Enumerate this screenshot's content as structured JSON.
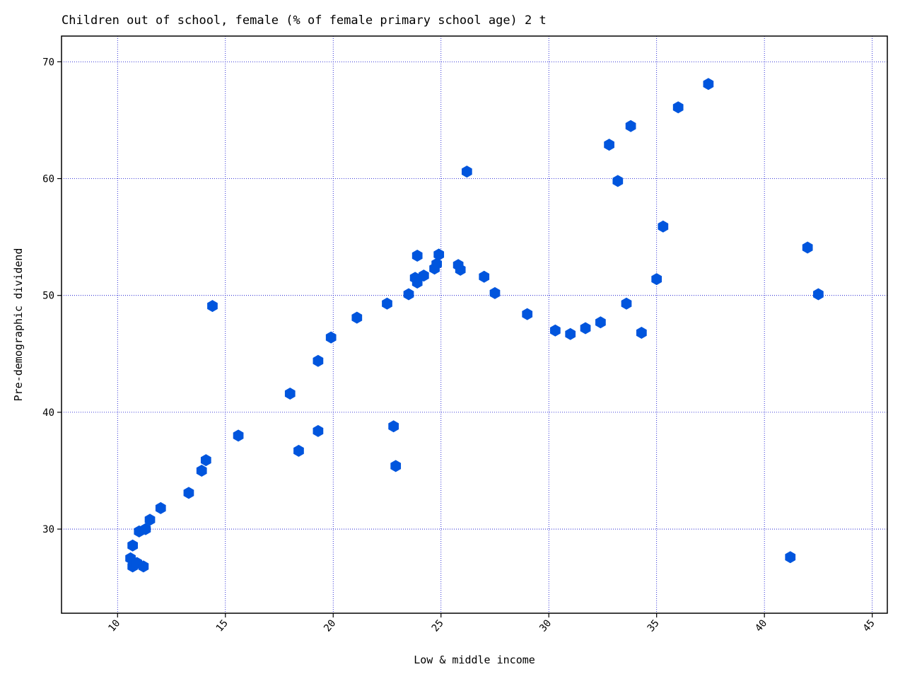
{
  "chart_data": {
    "type": "scatter",
    "title": "Children out of school, female (% of female primary school age) 2 t",
    "xlabel": "Low & middle income",
    "ylabel": "Pre-demographic dividend",
    "xlim": [
      7.4,
      45.7
    ],
    "ylim": [
      22.8,
      72.2
    ],
    "xticks": [
      10,
      15,
      20,
      25,
      30,
      35,
      40,
      45
    ],
    "yticks": [
      30,
      40,
      50,
      60,
      70
    ],
    "grid": true,
    "marker": "hexagon",
    "color": "#0055dd",
    "points": [
      [
        10.6,
        27.5
      ],
      [
        10.7,
        28.6
      ],
      [
        10.7,
        26.8
      ],
      [
        10.9,
        27.1
      ],
      [
        11.0,
        29.8
      ],
      [
        11.2,
        26.8
      ],
      [
        11.3,
        30.0
      ],
      [
        11.5,
        30.8
      ],
      [
        12.0,
        31.8
      ],
      [
        13.3,
        33.1
      ],
      [
        13.9,
        35.0
      ],
      [
        14.1,
        35.9
      ],
      [
        14.4,
        49.1
      ],
      [
        15.6,
        38.0
      ],
      [
        18.0,
        41.6
      ],
      [
        18.4,
        36.7
      ],
      [
        19.3,
        44.4
      ],
      [
        19.3,
        38.4
      ],
      [
        19.9,
        46.4
      ],
      [
        21.1,
        48.1
      ],
      [
        22.5,
        49.3
      ],
      [
        22.8,
        38.8
      ],
      [
        22.9,
        35.4
      ],
      [
        23.5,
        50.1
      ],
      [
        23.8,
        51.5
      ],
      [
        23.9,
        51.1
      ],
      [
        23.9,
        53.4
      ],
      [
        24.2,
        51.7
      ],
      [
        24.7,
        52.3
      ],
      [
        24.8,
        52.7
      ],
      [
        24.9,
        53.5
      ],
      [
        25.8,
        52.6
      ],
      [
        25.9,
        52.2
      ],
      [
        26.2,
        60.6
      ],
      [
        27.0,
        51.6
      ],
      [
        27.5,
        50.2
      ],
      [
        29.0,
        48.4
      ],
      [
        30.3,
        47.0
      ],
      [
        31.0,
        46.7
      ],
      [
        31.7,
        47.2
      ],
      [
        32.4,
        47.7
      ],
      [
        32.8,
        62.9
      ],
      [
        33.2,
        59.8
      ],
      [
        33.6,
        49.3
      ],
      [
        33.8,
        64.5
      ],
      [
        34.3,
        46.8
      ],
      [
        35.0,
        51.4
      ],
      [
        35.3,
        55.9
      ],
      [
        36.0,
        66.1
      ],
      [
        37.4,
        68.1
      ],
      [
        41.2,
        27.6
      ],
      [
        42.0,
        54.1
      ],
      [
        42.5,
        50.1
      ]
    ]
  }
}
